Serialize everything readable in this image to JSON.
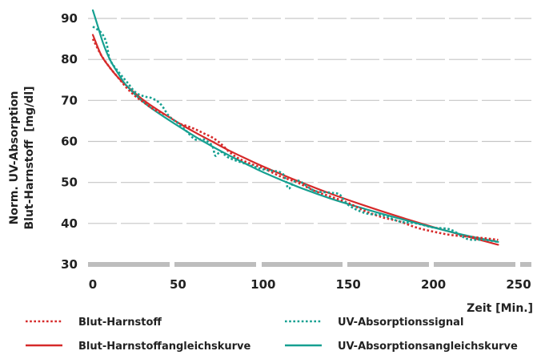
{
  "chart_data": {
    "type": "line",
    "ylabel_line1": "Norm. UV-Absorption",
    "ylabel_line2": "Blut-Harnstoff  [mg/dl]",
    "xlabel": "Zeit [Min.]",
    "xlim": [
      0,
      250
    ],
    "ylim": [
      30,
      92
    ],
    "x_ticks": [
      "0",
      "50",
      "100",
      "150",
      "200",
      "250"
    ],
    "y_ticks": [
      "30",
      "40",
      "50",
      "60",
      "70",
      "80",
      "90"
    ],
    "grid": "horizontal dashed",
    "legend_position": "bottom",
    "colors": {
      "red": "#d62a2a",
      "teal": "#16a091",
      "grid": "#c6c6c6",
      "axis_band": "#bdbdbd"
    },
    "series": [
      {
        "name": "Blut-Harnstoff",
        "style": "dotted",
        "color": "#d62a2a",
        "x": [
          0,
          5,
          10,
          15,
          20,
          25,
          30,
          35,
          40,
          45,
          50,
          55,
          60,
          65,
          70,
          75,
          80,
          85,
          90,
          95,
          100,
          110,
          120,
          130,
          140,
          150,
          160,
          170,
          180,
          190,
          200,
          210,
          220,
          230,
          238
        ],
        "y": [
          85,
          81,
          78,
          75.5,
          73,
          71,
          69.5,
          68,
          67,
          66,
          64.5,
          63.8,
          63,
          62,
          61,
          59.5,
          57.5,
          56,
          55,
          54.2,
          53.5,
          51.5,
          50,
          48,
          46.5,
          45,
          43,
          41.5,
          40.5,
          39,
          38,
          37.2,
          36.8,
          36.4,
          36
        ]
      },
      {
        "name": "Blut-Harnstoffangleichskurve",
        "style": "solid",
        "color": "#d62a2a",
        "x": [
          0,
          5,
          10,
          15,
          20,
          30,
          40,
          50,
          60,
          70,
          80,
          90,
          100,
          120,
          140,
          160,
          180,
          200,
          220,
          238
        ],
        "y": [
          86,
          81,
          78,
          75.5,
          73.5,
          70,
          67.2,
          64.6,
          62.2,
          60,
          57.8,
          55.8,
          53.9,
          50.4,
          47.2,
          44.3,
          41.6,
          39.1,
          36.8,
          34.8
        ]
      },
      {
        "name": "UV-Absorptionssignal",
        "style": "dotted",
        "color": "#16a091",
        "x": [
          0,
          5,
          8,
          10,
          15,
          20,
          25,
          30,
          35,
          40,
          45,
          50,
          55,
          60,
          65,
          70,
          72,
          75,
          80,
          90,
          100,
          110,
          113,
          115,
          120,
          130,
          140,
          145,
          150,
          160,
          170,
          180,
          190,
          200,
          210,
          220,
          230,
          238
        ],
        "y": [
          88,
          86.5,
          84,
          80,
          77,
          74.5,
          72,
          71,
          70.5,
          69,
          66,
          64.5,
          62.5,
          60.5,
          60.5,
          59,
          56.5,
          57.5,
          56,
          54.5,
          53.2,
          52.5,
          51,
          48.5,
          50.5,
          48,
          47.5,
          47,
          44.5,
          42.5,
          42,
          40.5,
          40,
          39,
          38.5,
          36.2,
          36,
          35.5
        ]
      },
      {
        "name": "UV-Absorptionsangleichskurve",
        "style": "solid",
        "color": "#16a091",
        "x": [
          0,
          3,
          6,
          10,
          15,
          20,
          30,
          40,
          50,
          60,
          70,
          80,
          90,
          100,
          120,
          140,
          160,
          180,
          200,
          220,
          238
        ],
        "y": [
          92,
          88,
          84,
          80,
          76.5,
          73.5,
          69.5,
          66.5,
          63.8,
          61.2,
          58.8,
          56.6,
          54.5,
          52.5,
          49,
          46,
          43.5,
          41.2,
          39,
          37,
          35.5
        ]
      }
    ]
  }
}
